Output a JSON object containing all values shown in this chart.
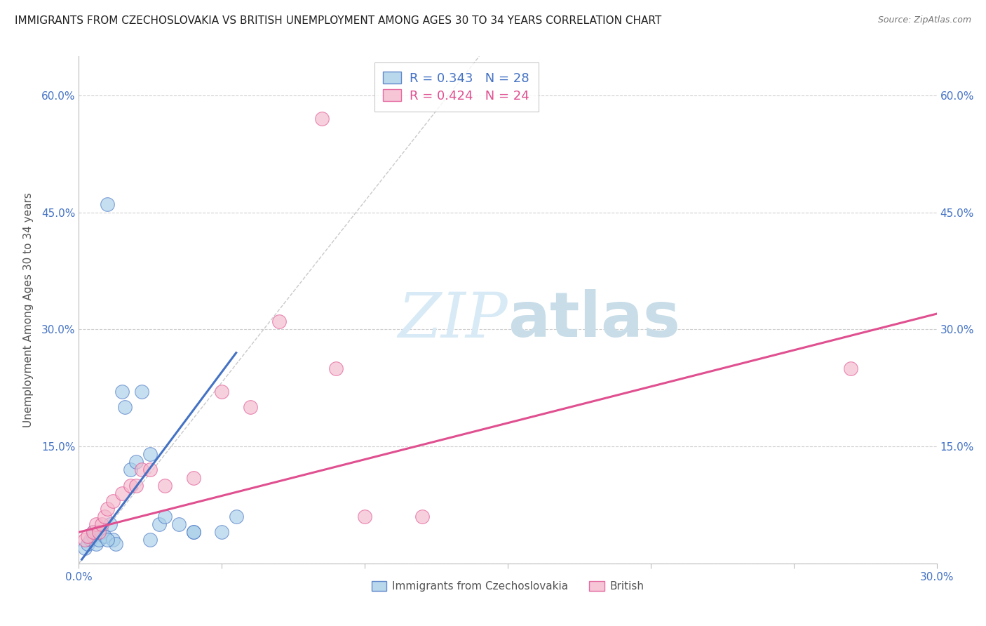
{
  "title": "IMMIGRANTS FROM CZECHOSLOVAKIA VS BRITISH UNEMPLOYMENT AMONG AGES 30 TO 34 YEARS CORRELATION CHART",
  "source": "Source: ZipAtlas.com",
  "ylabel": "Unemployment Among Ages 30 to 34 years",
  "xlim": [
    0.0,
    0.3
  ],
  "ylim": [
    0.0,
    0.65
  ],
  "legend_r_blue": "0.343",
  "legend_n_blue": "28",
  "legend_r_pink": "0.424",
  "legend_n_pink": "24",
  "legend_label_blue": "Immigrants from Czechoslovakia",
  "legend_label_pink": "British",
  "blue_scatter_x": [
    0.002,
    0.003,
    0.004,
    0.005,
    0.005,
    0.006,
    0.007,
    0.008,
    0.009,
    0.01,
    0.011,
    0.012,
    0.013,
    0.015,
    0.016,
    0.018,
    0.02,
    0.022,
    0.025,
    0.028,
    0.03,
    0.035,
    0.04,
    0.05,
    0.055,
    0.01,
    0.025,
    0.04
  ],
  "blue_scatter_y": [
    0.02,
    0.025,
    0.03,
    0.035,
    0.04,
    0.025,
    0.03,
    0.04,
    0.035,
    0.46,
    0.05,
    0.03,
    0.025,
    0.22,
    0.2,
    0.12,
    0.13,
    0.22,
    0.14,
    0.05,
    0.06,
    0.05,
    0.04,
    0.04,
    0.06,
    0.03,
    0.03,
    0.04
  ],
  "pink_scatter_x": [
    0.002,
    0.003,
    0.005,
    0.006,
    0.007,
    0.008,
    0.009,
    0.01,
    0.012,
    0.015,
    0.018,
    0.02,
    0.022,
    0.025,
    0.03,
    0.04,
    0.05,
    0.06,
    0.07,
    0.085,
    0.09,
    0.1,
    0.12,
    0.27
  ],
  "pink_scatter_y": [
    0.03,
    0.035,
    0.04,
    0.05,
    0.04,
    0.05,
    0.06,
    0.07,
    0.08,
    0.09,
    0.1,
    0.1,
    0.12,
    0.12,
    0.1,
    0.11,
    0.22,
    0.2,
    0.31,
    0.57,
    0.25,
    0.06,
    0.06,
    0.25
  ],
  "blue_line_x": [
    0.001,
    0.055
  ],
  "blue_line_y": [
    0.005,
    0.27
  ],
  "pink_line_x": [
    0.0,
    0.3
  ],
  "pink_line_y": [
    0.04,
    0.32
  ],
  "dash_line_x": [
    0.0,
    0.14
  ],
  "dash_line_y": [
    0.0,
    0.65
  ],
  "blue_scatter_color": "#a8cfe8",
  "pink_scatter_color": "#f4b8cc",
  "blue_line_color": "#4472c4",
  "pink_line_color": "#e05090",
  "dash_color": "#c0c0c0",
  "title_color": "#222222",
  "axis_color": "#555555",
  "grid_color": "#d0d0d0",
  "watermark_color": "#d8eaf5",
  "background_color": "#ffffff"
}
